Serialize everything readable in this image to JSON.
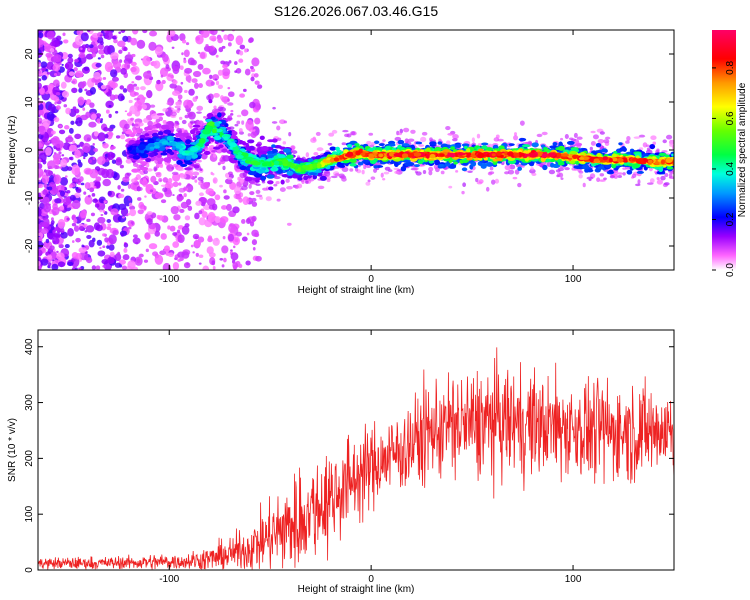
{
  "chart_data": [
    {
      "type": "heatmap",
      "title": "S126.2026.067.03.46.G15",
      "xlabel": "Height of straight line (km)",
      "ylabel": "Frequency (Hz)",
      "xlim": [
        -165,
        150
      ],
      "ylim": [
        -25,
        25
      ],
      "x_ticks": [
        -100,
        0,
        100
      ],
      "x_tick_labels": [
        "-100",
        "0",
        "100"
      ],
      "y_ticks": [
        -20,
        -10,
        0,
        10,
        20
      ],
      "y_tick_labels": [
        "-20",
        "-10",
        "0",
        "10",
        "20"
      ],
      "colorbar": {
        "label": "Normalized spectral amplitude",
        "range": [
          0,
          0.95
        ],
        "ticks": [
          0.0,
          0.2,
          0.4,
          0.6,
          0.8
        ],
        "tick_labels": [
          "0.0",
          "0.2",
          "0.4",
          "0.6",
          "0.8"
        ],
        "colors": [
          "#ffffff",
          "#ff00ff",
          "#6600ff",
          "#0000ff",
          "#00aaff",
          "#00ffcc",
          "#00ff00",
          "#aaff00",
          "#ffff00",
          "#ff8800",
          "#ff0000",
          "#ff0066"
        ]
      },
      "ridge": {
        "x": [
          -165,
          -140,
          -120,
          -110,
          -100,
          -90,
          -85,
          -80,
          -75,
          -70,
          -65,
          -60,
          -55,
          -50,
          -45,
          -40,
          -35,
          -30,
          -25,
          -20,
          -15,
          -10,
          -5,
          0,
          10,
          20,
          30,
          40,
          50,
          60,
          70,
          80,
          90,
          100,
          110,
          120,
          130,
          140,
          150
        ],
        "freq": [
          0,
          0,
          0,
          0.5,
          2,
          -1,
          1,
          5,
          4,
          2,
          -1,
          -2,
          -3,
          -3,
          -2.5,
          -3,
          -4,
          -3.5,
          -3,
          -2,
          -1.5,
          -1,
          -0.5,
          -1,
          -1,
          -1,
          -1,
          -1,
          -1,
          -1,
          -1,
          -1,
          -1,
          -1.5,
          -2,
          -2,
          -2,
          -2.5,
          -2.5
        ],
        "amplitude": [
          0.12,
          0.15,
          0.2,
          0.3,
          0.35,
          0.4,
          0.45,
          0.5,
          0.45,
          0.4,
          0.45,
          0.5,
          0.45,
          0.5,
          0.5,
          0.55,
          0.55,
          0.55,
          0.6,
          0.75,
          0.8,
          0.85,
          0.85,
          0.85,
          0.85,
          0.88,
          0.85,
          0.9,
          0.88,
          0.9,
          0.88,
          0.9,
          0.9,
          0.85,
          0.85,
          0.85,
          0.85,
          0.8,
          0.8
        ]
      }
    },
    {
      "type": "line",
      "xlabel": "Height of straight line (km)",
      "ylabel": "SNR (10 * v/v)",
      "xlim": [
        -165,
        150
      ],
      "ylim": [
        0,
        430
      ],
      "x_ticks": [
        -100,
        0,
        100
      ],
      "x_tick_labels": [
        "-100",
        "0",
        "100"
      ],
      "y_ticks": [
        0,
        100,
        200,
        300,
        400
      ],
      "y_tick_labels": [
        "0",
        "100",
        "200",
        "300",
        "400"
      ],
      "color": "#ee2222",
      "envelope": {
        "x": [
          -165,
          -140,
          -120,
          -100,
          -90,
          -80,
          -70,
          -60,
          -50,
          -40,
          -30,
          -20,
          -10,
          0,
          10,
          20,
          30,
          40,
          50,
          60,
          70,
          80,
          90,
          100,
          110,
          120,
          130,
          140,
          150
        ],
        "mean": [
          12,
          12,
          13,
          15,
          16,
          20,
          28,
          40,
          60,
          80,
          105,
          130,
          160,
          185,
          205,
          225,
          250,
          260,
          260,
          265,
          265,
          260,
          258,
          255,
          250,
          250,
          248,
          250,
          250
        ],
        "noise": [
          6,
          6,
          7,
          8,
          9,
          12,
          16,
          24,
          35,
          45,
          50,
          50,
          45,
          40,
          40,
          45,
          50,
          52,
          55,
          55,
          55,
          52,
          50,
          50,
          50,
          50,
          48,
          48,
          48
        ]
      }
    }
  ]
}
